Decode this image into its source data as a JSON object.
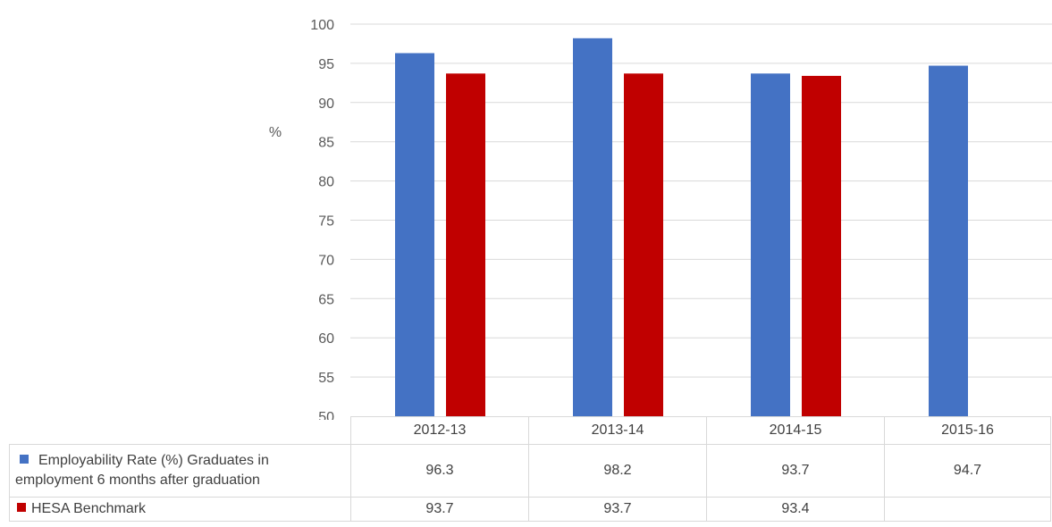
{
  "chart_data": {
    "type": "bar",
    "categories": [
      "2012-13",
      "2013-14",
      "2014-15",
      "2015-16"
    ],
    "series": [
      {
        "name": "Employability Rate (%) Graduates in employment 6 months after graduation",
        "name_lines": [
          "Employability Rate (%) Graduates in",
          "employment 6 months after graduation"
        ],
        "color": "#4472C4",
        "values": [
          96.3,
          98.2,
          93.7,
          94.7
        ],
        "labels": [
          "96.3",
          "98.2",
          "93.7",
          "94.7"
        ]
      },
      {
        "name": "HESA Benchmark",
        "color": "#C00000",
        "values": [
          93.7,
          93.7,
          93.4,
          null
        ],
        "labels": [
          "93.7",
          "93.7",
          "93.4",
          ""
        ]
      }
    ],
    "ylabel": "%",
    "ylim": [
      50,
      100
    ],
    "yticks": [
      "50",
      "55",
      "60",
      "65",
      "70",
      "75",
      "80",
      "85",
      "90",
      "95",
      "100"
    ],
    "grid": true,
    "legend": "data-table-below"
  }
}
